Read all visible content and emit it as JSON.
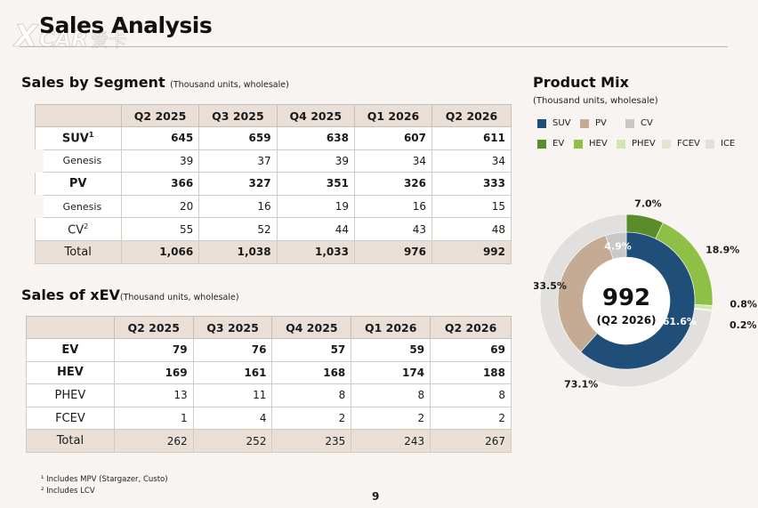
{
  "page": {
    "title": "Sales Analysis",
    "logo_text": "XCAR 爱卡",
    "page_number": "9"
  },
  "segment": {
    "title": "Sales by Segment",
    "subtitle": "(Thousand units, wholesale)",
    "columns": [
      "Q2 2025",
      "Q3 2025",
      "Q4 2025",
      "Q1 2026",
      "Q2 2026"
    ],
    "rows": [
      {
        "label": "SUV",
        "sup": "1",
        "values": [
          "645",
          "659",
          "638",
          "607",
          "611"
        ]
      },
      {
        "label": "Genesis",
        "values": [
          "39",
          "37",
          "39",
          "34",
          "34"
        ]
      },
      {
        "label": "PV",
        "values": [
          "366",
          "327",
          "351",
          "326",
          "333"
        ]
      },
      {
        "label": "Genesis",
        "values": [
          "20",
          "16",
          "19",
          "16",
          "15"
        ]
      },
      {
        "label": "CV",
        "sup": "2",
        "values": [
          "55",
          "52",
          "44",
          "43",
          "48"
        ]
      },
      {
        "label": "Total",
        "values": [
          "1,066",
          "1,038",
          "1,033",
          "976",
          "992"
        ]
      }
    ]
  },
  "xev": {
    "title": "Sales of xEV",
    "subtitle": "(Thousand units, wholesale)",
    "columns": [
      "Q2 2025",
      "Q3 2025",
      "Q4 2025",
      "Q1 2026",
      "Q2 2026"
    ],
    "rows": [
      {
        "label": "EV",
        "values": [
          "79",
          "76",
          "57",
          "59",
          "69"
        ]
      },
      {
        "label": "HEV",
        "values": [
          "169",
          "161",
          "168",
          "174",
          "188"
        ]
      },
      {
        "label": "PHEV",
        "values": [
          "13",
          "11",
          "8",
          "8",
          "8"
        ]
      },
      {
        "label": "FCEV",
        "values": [
          "1",
          "4",
          "2",
          "2",
          "2"
        ]
      },
      {
        "label": "Total",
        "values": [
          "262",
          "252",
          "235",
          "243",
          "267"
        ]
      }
    ]
  },
  "product_mix": {
    "title": "Product Mix",
    "subtitle": "(Thousand units, wholesale)",
    "legend": [
      {
        "label": "SUV",
        "color": "#1f4e79"
      },
      {
        "label": "PV",
        "color": "#c5ab93"
      },
      {
        "label": "CV",
        "color": "#c8c8c8"
      },
      {
        "label": "EV",
        "color": "#5b8c2a"
      },
      {
        "label": "HEV",
        "color": "#8ec046"
      },
      {
        "label": "PHEV",
        "color": "#cfe6b0"
      },
      {
        "label": "FCEV",
        "color": "#e4e4d2"
      },
      {
        "label": "ICE",
        "color": "#e2e0de"
      }
    ],
    "center_value": "992",
    "center_label": "(Q2 2026)",
    "inner": [
      {
        "name": "SUV",
        "value": 61.6,
        "label": "61.6%",
        "color": "#1f4e79"
      },
      {
        "name": "PV",
        "value": 33.5,
        "label": "33.5%",
        "color": "#c5ab93"
      },
      {
        "name": "CV",
        "value": 4.9,
        "label": "4.9%",
        "color": "#c8c8c8"
      }
    ],
    "outer": [
      {
        "name": "EV",
        "value": 7.0,
        "label": "7.0%",
        "color": "#5b8c2a"
      },
      {
        "name": "HEV",
        "value": 18.9,
        "label": "18.9%",
        "color": "#8ec046"
      },
      {
        "name": "PHEV",
        "value": 0.8,
        "label": "0.8%",
        "color": "#cfe6b0"
      },
      {
        "name": "FCEV",
        "value": 0.2,
        "label": "0.2%",
        "color": "#e4e4d2"
      },
      {
        "name": "ICE",
        "value": 73.1,
        "label": "73.1%",
        "color": "#e2e0de"
      }
    ]
  },
  "footnotes": {
    "f1": "¹ Includes MPV (Stargazer, Custo)",
    "f2": "² Includes LCV"
  }
}
